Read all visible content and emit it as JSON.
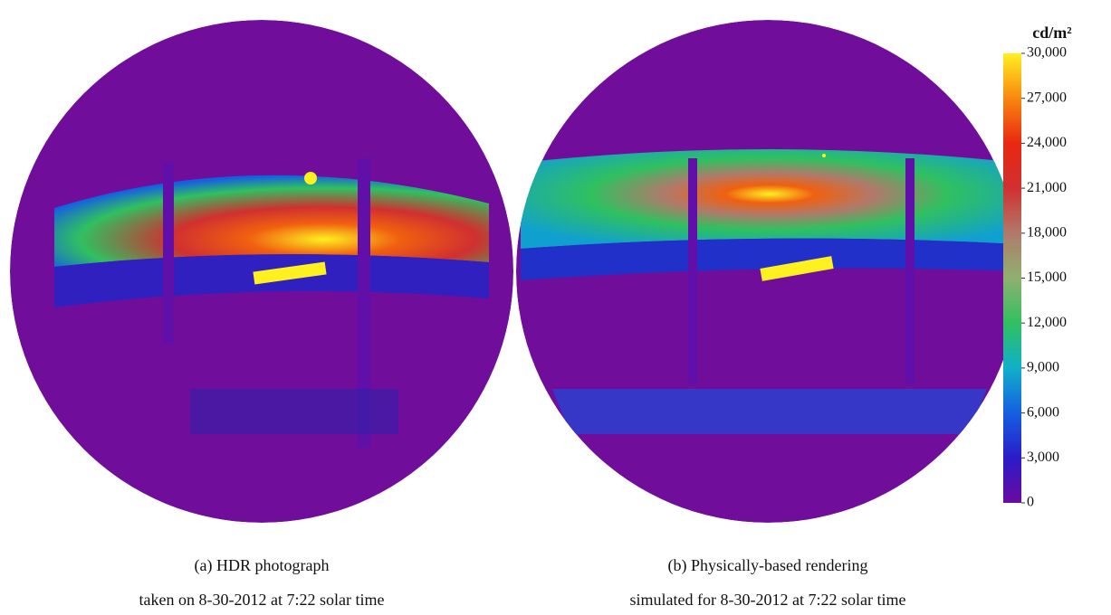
{
  "figure": {
    "panels": [
      {
        "caption": "(a) HDR photograph",
        "subcaption": "taken on 8-30-2012 at 7:22 solar time"
      },
      {
        "caption": "(b) Physically-based rendering",
        "subcaption": "simulated for 8-30-2012 at 7:22 solar time"
      }
    ],
    "colorbar": {
      "unit": "cd/m²",
      "ticks": [
        0,
        {
          "value": 3000,
          "label": "3,000"
        },
        {
          "value": 6000,
          "label": "6,000"
        },
        {
          "value": 9000,
          "label": "9,000"
        },
        {
          "value": 12000,
          "label": "12,000"
        },
        {
          "value": 15000,
          "label": "15,000"
        },
        {
          "value": 18000,
          "label": "18,000"
        },
        {
          "value": 21000,
          "label": "21,000"
        },
        {
          "value": 24000,
          "label": "24,000"
        },
        {
          "value": 27000,
          "label": "27,000"
        },
        {
          "value": 30000,
          "label": "30,000"
        }
      ]
    }
  }
}
